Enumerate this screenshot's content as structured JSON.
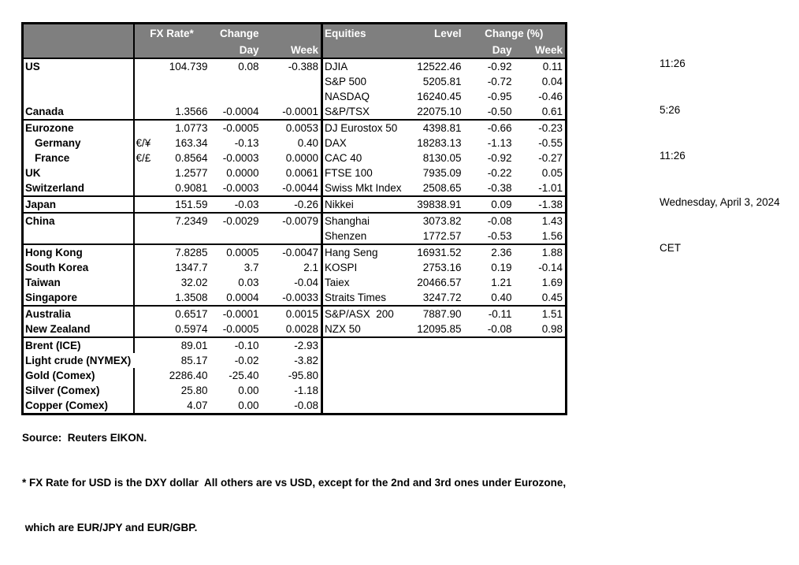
{
  "colors": {
    "header_bg": "#7f7f7f",
    "header_text": "#ffffff",
    "border": "#000000"
  },
  "times": {
    "lines": [
      "11:26",
      "5:26",
      "11:26",
      "Wednesday, April 3, 2024",
      "CET"
    ]
  },
  "table": {
    "fx_header": {
      "rate": "FX Rate*",
      "change": "Change",
      "day": "Day",
      "week": "Week"
    },
    "eq_header": {
      "title": "Equities",
      "level": "Level",
      "change": "Change (%)",
      "day": "Day",
      "week": "Week"
    },
    "rows": [
      {
        "name": "US",
        "pair": "",
        "rate": "104.739",
        "day": "0.08",
        "week": "-0.388",
        "eq": "DJIA",
        "level": "12522.46",
        "eq_day": "-0.92",
        "eq_week": "0.11"
      },
      {
        "name": "",
        "pair": "",
        "rate": "",
        "day": "",
        "week": "",
        "eq": "S&P 500",
        "level": "5205.81",
        "eq_day": "-0.72",
        "eq_week": "0.04"
      },
      {
        "name": "",
        "pair": "",
        "rate": "",
        "day": "",
        "week": "",
        "eq": "NASDAQ",
        "level": "16240.45",
        "eq_day": "-0.95",
        "eq_week": "-0.46"
      },
      {
        "name": "Canada",
        "pair": "",
        "rate": "1.3566",
        "day": "-0.0004",
        "week": "-0.0001",
        "eq": "S&P/TSX",
        "level": "22075.10",
        "eq_day": "-0.50",
        "eq_week": "0.61"
      },
      {
        "name": "Eurozone",
        "pair": "",
        "rate": "1.0773",
        "day": "-0.0005",
        "week": "0.0053",
        "eq": "DJ Eurostox 50",
        "level": "4398.81",
        "eq_day": "-0.66",
        "eq_week": "-0.23",
        "section": true
      },
      {
        "name": "Germany",
        "indent": true,
        "pair": "€/¥",
        "rate": "163.34",
        "day": "-0.13",
        "week": "0.40",
        "eq": "DAX",
        "level": "18283.13",
        "eq_day": "-1.13",
        "eq_week": "-0.55"
      },
      {
        "name": "France",
        "indent": true,
        "pair": "€/£",
        "rate": "0.8564",
        "day": "-0.0003",
        "week": "0.0000",
        "eq": "CAC 40",
        "level": "8130.05",
        "eq_day": "-0.92",
        "eq_week": "-0.27"
      },
      {
        "name": "UK",
        "pair": "",
        "rate": "1.2577",
        "day": "0.0000",
        "week": "0.0061",
        "eq": "FTSE 100",
        "level": "7935.09",
        "eq_day": "-0.22",
        "eq_week": "0.05"
      },
      {
        "name": "Switzerland",
        "pair": "",
        "rate": "0.9081",
        "day": "-0.0003",
        "week": "-0.0044",
        "eq": "Swiss Mkt Index",
        "level": "2508.65",
        "eq_day": "-0.38",
        "eq_week": "-1.01"
      },
      {
        "name": "Japan",
        "pair": "",
        "rate": "151.59",
        "day": "-0.03",
        "week": "-0.26",
        "eq": "Nikkei",
        "level": "39838.91",
        "eq_day": "0.09",
        "eq_week": "-1.38",
        "section": true
      },
      {
        "name": "China",
        "pair": "",
        "rate": "7.2349",
        "day": "-0.0029",
        "week": "-0.0079",
        "eq": "Shanghai",
        "level": "3073.82",
        "eq_day": "-0.08",
        "eq_week": "1.43",
        "section": true
      },
      {
        "name": "",
        "pair": "",
        "rate": "",
        "day": "",
        "week": "",
        "eq": "Shenzen",
        "level": "1772.57",
        "eq_day": "-0.53",
        "eq_week": "1.56"
      },
      {
        "name": "Hong Kong",
        "pair": "",
        "rate": "7.8285",
        "day": "0.0005",
        "week": "-0.0047",
        "eq": "Hang Seng",
        "level": "16931.52",
        "eq_day": "2.36",
        "eq_week": "1.88",
        "section": true
      },
      {
        "name": "South Korea",
        "pair": "",
        "rate": "1347.7",
        "day": "3.7",
        "week": "2.1",
        "eq": "KOSPI",
        "level": "2753.16",
        "eq_day": "0.19",
        "eq_week": "-0.14"
      },
      {
        "name": "Taiwan",
        "pair": "",
        "rate": "32.02",
        "day": "0.03",
        "week": "-0.04",
        "eq": "Taiex",
        "level": "20466.57",
        "eq_day": "1.21",
        "eq_week": "1.69"
      },
      {
        "name": "Singapore",
        "pair": "",
        "rate": "1.3508",
        "day": "0.0004",
        "week": "-0.0033",
        "eq": "Straits Times",
        "level": "3247.72",
        "eq_day": "0.40",
        "eq_week": "0.45"
      },
      {
        "name": "Australia",
        "pair": "",
        "rate": "0.6517",
        "day": "-0.0001",
        "week": "0.0015",
        "eq": "S&P/ASX  200",
        "level": "7887.90",
        "eq_day": "-0.11",
        "eq_week": "1.51",
        "section": true
      },
      {
        "name": "New Zealand",
        "pair": "",
        "rate": "0.5974",
        "day": "-0.0005",
        "week": "0.0028",
        "eq": "NZX 50",
        "level": "12095.85",
        "eq_day": "-0.08",
        "eq_week": "0.98"
      },
      {
        "name": "Brent (ICE)",
        "pair": "",
        "rate": "89.01",
        "day": "-0.10",
        "week": "-2.93",
        "eq": "",
        "level": "",
        "eq_day": "",
        "eq_week": "",
        "section": true
      },
      {
        "name": "Light crude (NYMEX)",
        "overflow": true,
        "pair": "",
        "rate": "85.17",
        "day": "-0.02",
        "week": "-3.82",
        "eq": "",
        "level": "",
        "eq_day": "",
        "eq_week": ""
      },
      {
        "name": "Gold (Comex)",
        "pair": "",
        "rate": "2286.40",
        "day": "-25.40",
        "week": "-95.80",
        "eq": "",
        "level": "",
        "eq_day": "",
        "eq_week": ""
      },
      {
        "name": "Silver (Comex)",
        "pair": "",
        "rate": "25.80",
        "day": "0.00",
        "week": "-1.18",
        "eq": "",
        "level": "",
        "eq_day": "",
        "eq_week": ""
      },
      {
        "name": "Copper (Comex)",
        "pair": "",
        "rate": "4.07",
        "day": "0.00",
        "week": "-0.08",
        "eq": "",
        "level": "",
        "eq_day": "",
        "eq_week": ""
      }
    ]
  },
  "footer": {
    "source": "Source:  Reuters EIKON.",
    "footnote_line1": "* FX Rate for USD is the DXY dollar  All others are vs USD, except for the 2nd and 3rd ones under Eurozone,",
    "footnote_line2": " which are EUR/JPY and EUR/GBP."
  }
}
